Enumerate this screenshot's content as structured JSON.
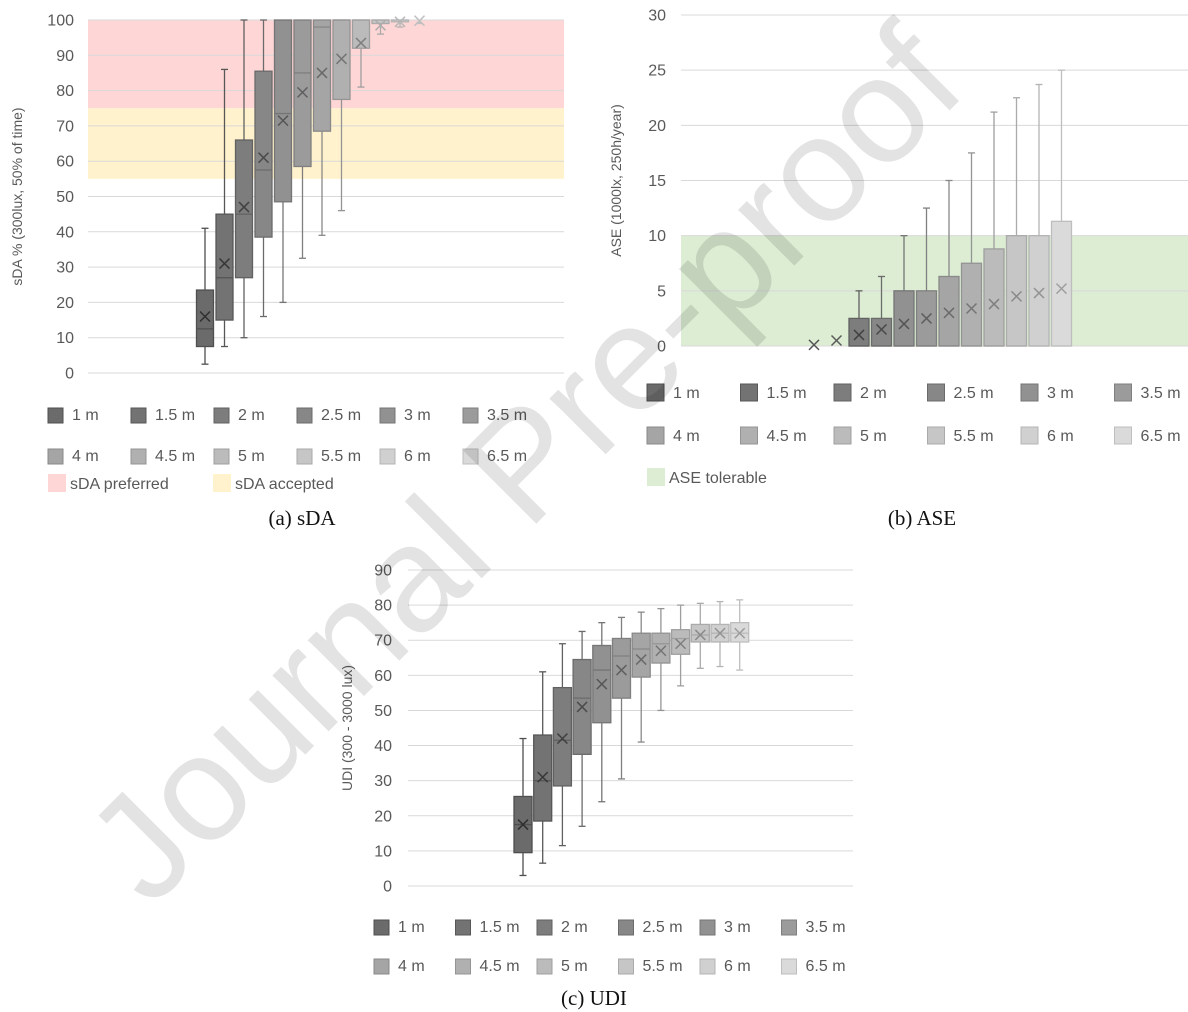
{
  "watermark": "Journal Pre-proof",
  "legend_labels": [
    "1 m",
    "1.5 m",
    "2 m",
    "2.5 m",
    "3 m",
    "3.5 m",
    "4 m",
    "4.5 m",
    "5 m",
    "5.5 m",
    "6 m",
    "6.5 m"
  ],
  "colors": {
    "series": [
      "#6b6b6b",
      "#737373",
      "#7d7d7d",
      "#878787",
      "#919191",
      "#9b9b9b",
      "#a5a5a5",
      "#b0b0b0",
      "#bbbbbb",
      "#c6c6c6",
      "#d0d0d0",
      "#dadada"
    ],
    "gridline": "#d9d9d9",
    "axis_text": "#595959",
    "sda_preferred": "#ffd6d6",
    "sda_accepted": "#fff2cc",
    "ase_tolerable": "#dcedd3"
  },
  "chart_data": [
    {
      "id": "sda",
      "type": "box",
      "caption": "(a)   sDA",
      "ylabel": "sDA % (300lux, 50% of time)",
      "ylim": [
        0,
        100
      ],
      "yticks": [
        0,
        10,
        20,
        30,
        40,
        50,
        60,
        70,
        80,
        90,
        100
      ],
      "grid": true,
      "legend_position": "bottom",
      "bands": [
        {
          "label": "sDA preferred",
          "from": 75,
          "to": 100
        },
        {
          "label": "sDA accepted",
          "from": 55,
          "to": 75
        }
      ],
      "series": [
        {
          "name": "1 m",
          "min": 2.5,
          "q1": 7.5,
          "median": 12.5,
          "q3": 23.5,
          "max": 41,
          "mean": 16
        },
        {
          "name": "1.5 m",
          "min": 7.5,
          "q1": 15,
          "median": 27,
          "q3": 45,
          "max": 86,
          "mean": 31
        },
        {
          "name": "2 m",
          "min": 10,
          "q1": 27,
          "median": 45,
          "q3": 66,
          "max": 100,
          "mean": 47
        },
        {
          "name": "2.5 m",
          "min": 16,
          "q1": 38.5,
          "median": 57.5,
          "q3": 85.5,
          "max": 100,
          "mean": 61
        },
        {
          "name": "3 m",
          "min": 20,
          "q1": 48.5,
          "median": 73.5,
          "q3": 100,
          "max": 100,
          "mean": 71.5
        },
        {
          "name": "3.5 m",
          "min": 32.5,
          "q1": 58.5,
          "median": 85,
          "q3": 100,
          "max": 100,
          "mean": 79.5
        },
        {
          "name": "4 m",
          "min": 39,
          "q1": 68.5,
          "median": 98,
          "q3": 100,
          "max": 100,
          "mean": 85
        },
        {
          "name": "4.5 m",
          "min": 46,
          "q1": 77.5,
          "median": 100,
          "q3": 100,
          "max": 100,
          "mean": 89
        },
        {
          "name": "5 m",
          "min": 81,
          "q1": 92,
          "median": 100,
          "q3": 100,
          "max": 100,
          "mean": 93.5
        },
        {
          "name": "5.5 m",
          "min": 96,
          "q1": 99,
          "median": 100,
          "q3": 100,
          "max": 100,
          "mean": 98.5
        },
        {
          "name": "6 m",
          "min": 98,
          "q1": 99.5,
          "median": 100,
          "q3": 100,
          "max": 100,
          "mean": 99.5
        },
        {
          "name": "6.5 m",
          "min": 99,
          "q1": 100,
          "median": 100,
          "q3": 100,
          "max": 100,
          "mean": 99.8
        }
      ]
    },
    {
      "id": "ase",
      "type": "box",
      "caption": "(b)   ASE",
      "ylabel": "ASE (1000lx, 250h/year)",
      "ylim": [
        0,
        30
      ],
      "yticks": [
        0,
        5,
        10,
        15,
        20,
        25,
        30
      ],
      "grid": true,
      "legend_position": "bottom",
      "bands": [
        {
          "label": "ASE tolerable",
          "from": 0,
          "to": 10
        }
      ],
      "series": [
        {
          "name": "1 m",
          "min": 0,
          "q1": 0,
          "median": 0,
          "q3": 0,
          "max": 0,
          "mean": 0.1
        },
        {
          "name": "1.5 m",
          "min": 0,
          "q1": 0,
          "median": 0,
          "q3": 0,
          "max": 0,
          "mean": 0.5
        },
        {
          "name": "2 m",
          "min": 0,
          "q1": 0,
          "median": 0,
          "q3": 2.5,
          "max": 5,
          "mean": 1
        },
        {
          "name": "2.5 m",
          "min": 0,
          "q1": 0,
          "median": 0,
          "q3": 2.5,
          "max": 6.3,
          "mean": 1.5
        },
        {
          "name": "3 m",
          "min": 0,
          "q1": 0,
          "median": 0,
          "q3": 5,
          "max": 10,
          "mean": 2
        },
        {
          "name": "3.5 m",
          "min": 0,
          "q1": 0,
          "median": 0,
          "q3": 5,
          "max": 12.5,
          "mean": 2.5
        },
        {
          "name": "4 m",
          "min": 0,
          "q1": 0,
          "median": 0,
          "q3": 6.3,
          "max": 15,
          "mean": 3
        },
        {
          "name": "4.5 m",
          "min": 0,
          "q1": 0,
          "median": 0,
          "q3": 7.5,
          "max": 17.5,
          "mean": 3.4
        },
        {
          "name": "5 m",
          "min": 0,
          "q1": 0,
          "median": 0,
          "q3": 8.8,
          "max": 21.2,
          "mean": 3.8
        },
        {
          "name": "5.5 m",
          "min": 0,
          "q1": 0,
          "median": 0,
          "q3": 10,
          "max": 22.5,
          "mean": 4.5
        },
        {
          "name": "6 m",
          "min": 0,
          "q1": 0,
          "median": 0,
          "q3": 10,
          "max": 23.7,
          "mean": 4.8
        },
        {
          "name": "6.5 m",
          "min": 0,
          "q1": 0,
          "median": 0,
          "q3": 11.3,
          "max": 25,
          "mean": 5.2
        }
      ]
    },
    {
      "id": "udi",
      "type": "box",
      "caption": "(c) UDI",
      "ylabel": "UDI (300 - 3000 lux)",
      "ylim": [
        0,
        90
      ],
      "yticks": [
        0,
        10,
        20,
        30,
        40,
        50,
        60,
        70,
        80,
        90
      ],
      "grid": true,
      "legend_position": "bottom",
      "bands": [],
      "series": [
        {
          "name": "1 m",
          "min": 3,
          "q1": 9.5,
          "median": 17.5,
          "q3": 25.5,
          "max": 42,
          "mean": 17.5
        },
        {
          "name": "1.5 m",
          "min": 6.5,
          "q1": 18.5,
          "median": 30,
          "q3": 43,
          "max": 61,
          "mean": 31
        },
        {
          "name": "2 m",
          "min": 11.5,
          "q1": 28.5,
          "median": 41.5,
          "q3": 56.5,
          "max": 69,
          "mean": 42
        },
        {
          "name": "2.5 m",
          "min": 17,
          "q1": 37.5,
          "median": 53.5,
          "q3": 64.5,
          "max": 72.5,
          "mean": 51
        },
        {
          "name": "3 m",
          "min": 24,
          "q1": 46.5,
          "median": 61.5,
          "q3": 68.5,
          "max": 75,
          "mean": 57.5
        },
        {
          "name": "3.5 m",
          "min": 30.5,
          "q1": 53.5,
          "median": 65.5,
          "q3": 70.5,
          "max": 76.5,
          "mean": 61.5
        },
        {
          "name": "4 m",
          "min": 41,
          "q1": 59.5,
          "median": 67.5,
          "q3": 72,
          "max": 78,
          "mean": 64.5
        },
        {
          "name": "4.5 m",
          "min": 50,
          "q1": 63.5,
          "median": 69,
          "q3": 72,
          "max": 79,
          "mean": 67
        },
        {
          "name": "5 m",
          "min": 57,
          "q1": 66,
          "median": 70.5,
          "q3": 73,
          "max": 80,
          "mean": 69
        },
        {
          "name": "5.5 m",
          "min": 62,
          "q1": 69.5,
          "median": 71.5,
          "q3": 74.5,
          "max": 80.5,
          "mean": 71.5
        },
        {
          "name": "6 m",
          "min": 62.5,
          "q1": 69.5,
          "median": 72,
          "q3": 74.5,
          "max": 81,
          "mean": 72
        },
        {
          "name": "6.5 m",
          "min": 61.5,
          "q1": 69.5,
          "median": 72,
          "q3": 75,
          "max": 81.5,
          "mean": 72
        }
      ]
    }
  ]
}
